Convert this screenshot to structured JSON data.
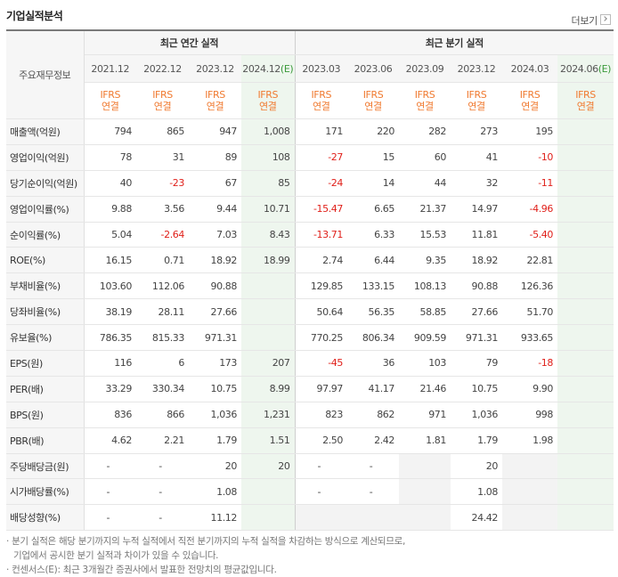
{
  "title": "기업실적분석",
  "more_label": "더보기",
  "header": {
    "row_label": "주요재무정보",
    "annual_label": "최근 연간 실적",
    "quarter_label": "최근 분기 실적",
    "annual_years": [
      "2021.12",
      "2022.12",
      "2023.12",
      "2024.12"
    ],
    "annual_est_suffix": "(E)",
    "quarter_periods": [
      "2023.03",
      "2023.06",
      "2023.09",
      "2023.12",
      "2024.03",
      "2024.06"
    ],
    "quarter_est_suffix": "(E)",
    "ifrs_top": "IFRS",
    "ifrs_bottom": "연결"
  },
  "rows": [
    {
      "label": "매출액(억원)",
      "values": [
        "794",
        "865",
        "947",
        "1,008",
        "171",
        "220",
        "282",
        "273",
        "195",
        ""
      ]
    },
    {
      "label": "영업이익(억원)",
      "values": [
        "78",
        "31",
        "89",
        "108",
        "-27",
        "15",
        "60",
        "41",
        "-10",
        ""
      ]
    },
    {
      "label": "당기순이익(억원)",
      "values": [
        "40",
        "-23",
        "67",
        "85",
        "-24",
        "14",
        "44",
        "32",
        "-11",
        ""
      ]
    },
    {
      "label": "영업이익률(%)",
      "values": [
        "9.88",
        "3.56",
        "9.44",
        "10.71",
        "-15.47",
        "6.65",
        "21.37",
        "14.97",
        "-4.96",
        ""
      ]
    },
    {
      "label": "순이익률(%)",
      "values": [
        "5.04",
        "-2.64",
        "7.03",
        "8.43",
        "-13.71",
        "6.33",
        "15.53",
        "11.81",
        "-5.40",
        ""
      ]
    },
    {
      "label": "ROE(%)",
      "values": [
        "16.15",
        "0.71",
        "18.92",
        "18.99",
        "2.74",
        "6.44",
        "9.35",
        "18.92",
        "22.81",
        ""
      ]
    },
    {
      "label": "부채비율(%)",
      "values": [
        "103.60",
        "112.06",
        "90.88",
        "",
        "129.85",
        "133.15",
        "108.13",
        "90.88",
        "126.36",
        ""
      ]
    },
    {
      "label": "당좌비율(%)",
      "values": [
        "38.19",
        "28.11",
        "27.66",
        "",
        "50.64",
        "56.35",
        "58.85",
        "27.66",
        "51.70",
        ""
      ]
    },
    {
      "label": "유보율(%)",
      "values": [
        "786.35",
        "815.33",
        "971.31",
        "",
        "770.25",
        "806.34",
        "909.59",
        "971.31",
        "933.65",
        ""
      ]
    },
    {
      "label": "EPS(원)",
      "values": [
        "116",
        "6",
        "173",
        "207",
        "-45",
        "36",
        "103",
        "79",
        "-18",
        ""
      ]
    },
    {
      "label": "PER(배)",
      "values": [
        "33.29",
        "330.34",
        "10.75",
        "8.99",
        "97.97",
        "41.17",
        "21.46",
        "10.75",
        "9.90",
        ""
      ]
    },
    {
      "label": "BPS(원)",
      "values": [
        "836",
        "866",
        "1,036",
        "1,231",
        "823",
        "862",
        "971",
        "1,036",
        "998",
        ""
      ]
    },
    {
      "label": "PBR(배)",
      "values": [
        "4.62",
        "2.21",
        "1.79",
        "1.51",
        "2.50",
        "2.42",
        "1.81",
        "1.79",
        "1.98",
        ""
      ]
    },
    {
      "label": "주당배당금(원)",
      "values": [
        "-",
        "-",
        "20",
        "20",
        "-",
        "-",
        "",
        "20",
        "",
        ""
      ]
    },
    {
      "label": "시가배당률(%)",
      "values": [
        "-",
        "-",
        "1.08",
        "",
        "-",
        "-",
        "",
        "1.08",
        "",
        ""
      ]
    },
    {
      "label": "배당성향(%)",
      "values": [
        "-",
        "-",
        "11.12",
        "",
        "",
        "",
        "",
        "24.42",
        "",
        ""
      ]
    }
  ],
  "footnotes": [
    "· 분기 실적은 해당 분기까지의 누적 실적에서 직전 분기까지의 누적 실적을 차감하는 방식으로 계산되므로,",
    "  기업에서 공시한 분기 실적과 차이가 있을 수 있습니다.",
    "· 컨센서스(E): 최근 3개월간 증권사에서 발표한 전망치의 평균값입니다."
  ]
}
